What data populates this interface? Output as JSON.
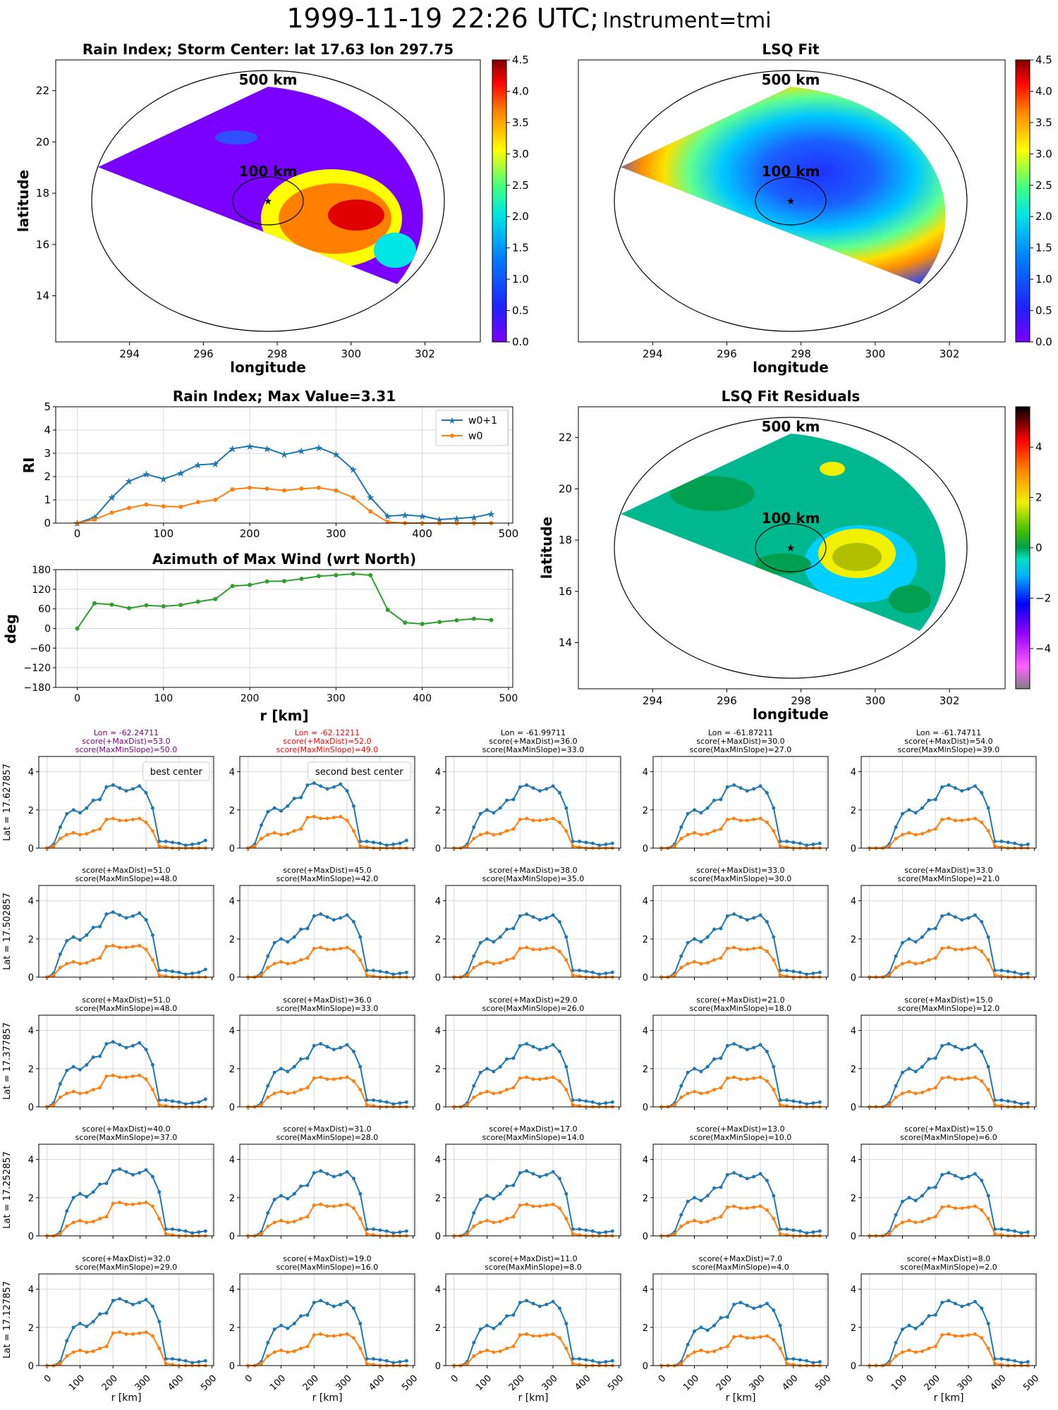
{
  "suptitle_time": "1999-11-19 22:26 UTC;",
  "suptitle_instrument": "Instrument=tmi",
  "colors": {
    "series1": "#1f77b4",
    "series2": "#ff7f0e",
    "azimuth": "#2ca02c",
    "grid": "#d9d9d9",
    "highlight_best": "#800080",
    "highlight_second": "#ff0000"
  },
  "maps": [
    {
      "title": "Rain Index; Storm Center: lat 17.63 lon 297.75",
      "xlabel": "longitude",
      "ylabel": "latitude",
      "label_500": "500 km",
      "label_100": "100 km",
      "xticks": [
        "294",
        "296",
        "298",
        "300",
        "302"
      ],
      "yticks": [
        "14",
        "16",
        "18",
        "20",
        "22"
      ],
      "colorbar_ticks": [
        "0.0",
        "0.5",
        "1.0",
        "1.5",
        "2.0",
        "2.5",
        "3.0",
        "3.5",
        "4.0",
        "4.5"
      ],
      "colormap": "jet"
    },
    {
      "title": "LSQ Fit",
      "xlabel": "longitude",
      "ylabel": "",
      "label_500": "500 km",
      "label_100": "100 km",
      "xticks": [
        "294",
        "296",
        "298",
        "300",
        "302"
      ],
      "yticks": [],
      "colorbar_ticks": [
        "0.0",
        "0.5",
        "1.0",
        "1.5",
        "2.0",
        "2.5",
        "3.0",
        "3.5",
        "4.0",
        "4.5"
      ],
      "colormap": "jet"
    },
    {
      "title": "LSQ Fit Residuals",
      "xlabel": "longitude",
      "ylabel": "latitude",
      "label_500": "500 km",
      "label_100": "100 km",
      "xticks": [
        "294",
        "296",
        "298",
        "300",
        "302"
      ],
      "yticks": [
        "14",
        "16",
        "18",
        "20",
        "22"
      ],
      "colorbar_ticks": [
        "−4",
        "−2",
        "0",
        "2",
        "4"
      ],
      "colormap": "diverging"
    }
  ],
  "chart_data": [
    {
      "type": "line",
      "title": "Rain Index; Max Value=3.31",
      "xlabel": "",
      "ylabel": "RI",
      "xlim": [
        -25,
        505
      ],
      "ylim": [
        0,
        5
      ],
      "xticks": [
        "0",
        "100",
        "200",
        "300",
        "400",
        "500"
      ],
      "yticks": [
        "0",
        "1",
        "2",
        "3",
        "4",
        "5"
      ],
      "legend": "top-right",
      "grid": true,
      "x": [
        0,
        20,
        40,
        60,
        80,
        100,
        120,
        140,
        160,
        180,
        200,
        220,
        240,
        260,
        280,
        300,
        320,
        340,
        360,
        380,
        400,
        420,
        440,
        460,
        480
      ],
      "series": [
        {
          "name": "w0+1",
          "marker": "star",
          "values": [
            0.0,
            0.25,
            1.1,
            1.8,
            2.1,
            1.9,
            2.15,
            2.5,
            2.55,
            3.2,
            3.31,
            3.2,
            2.95,
            3.1,
            3.25,
            2.95,
            2.3,
            1.1,
            0.3,
            0.35,
            0.3,
            0.15,
            0.2,
            0.25,
            0.4
          ]
        },
        {
          "name": "w0",
          "marker": "dot",
          "values": [
            0.0,
            0.15,
            0.45,
            0.65,
            0.8,
            0.72,
            0.7,
            0.9,
            1.0,
            1.45,
            1.52,
            1.48,
            1.4,
            1.48,
            1.52,
            1.4,
            1.1,
            0.5,
            0.05,
            0.0,
            0.0,
            0.0,
            0.0,
            0.0,
            0.0
          ]
        }
      ]
    },
    {
      "type": "line",
      "title": "Azimuth of Max Wind (wrt North)",
      "xlabel": "r [km]",
      "ylabel": "deg",
      "xlim": [
        -25,
        505
      ],
      "ylim": [
        -180,
        180
      ],
      "xticks": [
        "0",
        "100",
        "200",
        "300",
        "400",
        "500"
      ],
      "yticks": [
        "180",
        "120",
        "60",
        "0",
        "−60",
        "−120",
        "−180"
      ],
      "grid": true,
      "x": [
        0,
        20,
        40,
        60,
        80,
        100,
        120,
        140,
        160,
        180,
        200,
        220,
        240,
        260,
        280,
        300,
        320,
        340,
        360,
        380,
        400,
        420,
        440,
        460,
        480
      ],
      "series": [
        {
          "name": "",
          "values": [
            0,
            77,
            73,
            62,
            71,
            68,
            72,
            82,
            90,
            130,
            133,
            144,
            145,
            152,
            160,
            163,
            167,
            163,
            57,
            18,
            14,
            20,
            25,
            30,
            26
          ]
        }
      ]
    },
    {
      "type": "line-grid",
      "x": [
        0,
        20,
        40,
        60,
        80,
        100,
        120,
        140,
        160,
        180,
        200,
        220,
        240,
        260,
        280,
        300,
        320,
        340,
        360,
        380,
        400,
        420,
        440,
        460,
        480
      ],
      "xlim": [
        -25,
        505
      ],
      "ylim": [
        0,
        4.8
      ],
      "xticks": [
        "0",
        "100",
        "200",
        "300",
        "400",
        "500"
      ],
      "yticks": [
        "0",
        "2",
        "4"
      ],
      "xlabel": "r [km]",
      "rows": [
        {
          "label": "Lat = 17.627857"
        },
        {
          "label": "Lat = 17.502857"
        },
        {
          "label": "Lat = 17.377857"
        },
        {
          "label": "Lat = 17.252857"
        },
        {
          "label": "Lat = 17.127857"
        }
      ],
      "panels": [
        {
          "title": [
            "Lon = -62.24711",
            "score(+MaxDist)=53.0",
            "score(MaxMinSlope)=50.0"
          ],
          "highlight": "best",
          "legend_text": "best center",
          "shift": 0,
          "bump": 0
        },
        {
          "title": [
            "Lon = -62.12211",
            "score(+MaxDist)=52.0",
            "score(MaxMinSlope)=49.0"
          ],
          "highlight": "second",
          "legend_text": "second best center",
          "shift": 0,
          "bump": 0.1
        },
        {
          "title": [
            "Lon = -61.99711",
            "score(+MaxDist)=36.0",
            "score(MaxMinSlope)=33.0"
          ],
          "highlight": "",
          "legend_text": "",
          "shift": 1,
          "bump": 0
        },
        {
          "title": [
            "Lon = -61.87211",
            "score(+MaxDist)=30.0",
            "score(MaxMinSlope)=27.0"
          ],
          "highlight": "",
          "legend_text": "",
          "shift": 1,
          "bump": 0
        },
        {
          "title": [
            "Lon = -61.74711",
            "score(+MaxDist)=54.0",
            "score(MaxMinSlope)=39.0"
          ],
          "highlight": "",
          "legend_text": "",
          "shift": 2,
          "bump": 0
        },
        {
          "title": [
            "score(+MaxDist)=51.0",
            "score(MaxMinSlope)=48.0"
          ],
          "highlight": "",
          "legend_text": "",
          "shift": 0,
          "bump": 0.1
        },
        {
          "title": [
            "score(+MaxDist)=45.0",
            "score(MaxMinSlope)=42.0"
          ],
          "highlight": "",
          "legend_text": "",
          "shift": 1,
          "bump": 0
        },
        {
          "title": [
            "score(+MaxDist)=38.0",
            "score(MaxMinSlope)=35.0"
          ],
          "highlight": "",
          "legend_text": "",
          "shift": 1,
          "bump": 0
        },
        {
          "title": [
            "score(+MaxDist)=33.0",
            "score(MaxMinSlope)=30.0"
          ],
          "highlight": "",
          "legend_text": "",
          "shift": 1,
          "bump": 0
        },
        {
          "title": [
            "score(+MaxDist)=33.0",
            "score(MaxMinSlope)=21.0"
          ],
          "highlight": "",
          "legend_text": "",
          "shift": 2,
          "bump": 0
        },
        {
          "title": [
            "score(+MaxDist)=51.0",
            "score(MaxMinSlope)=48.0"
          ],
          "highlight": "",
          "legend_text": "",
          "shift": 0,
          "bump": 0.1
        },
        {
          "title": [
            "score(+MaxDist)=36.0",
            "score(MaxMinSlope)=33.0"
          ],
          "highlight": "",
          "legend_text": "",
          "shift": 1,
          "bump": 0
        },
        {
          "title": [
            "score(+MaxDist)=29.0",
            "score(MaxMinSlope)=26.0"
          ],
          "highlight": "",
          "legend_text": "",
          "shift": 1,
          "bump": 0
        },
        {
          "title": [
            "score(+MaxDist)=21.0",
            "score(MaxMinSlope)=18.0"
          ],
          "highlight": "",
          "legend_text": "",
          "shift": 1,
          "bump": 0
        },
        {
          "title": [
            "score(+MaxDist)=15.0",
            "score(MaxMinSlope)=12.0"
          ],
          "highlight": "",
          "legend_text": "",
          "shift": 2,
          "bump": 0
        },
        {
          "title": [
            "score(+MaxDist)=40.0",
            "score(MaxMinSlope)=37.0"
          ],
          "highlight": "",
          "legend_text": "",
          "shift": 1,
          "bump": 0.2
        },
        {
          "title": [
            "score(+MaxDist)=31.0",
            "score(MaxMinSlope)=28.0"
          ],
          "highlight": "",
          "legend_text": "",
          "shift": 1,
          "bump": 0.1
        },
        {
          "title": [
            "score(+MaxDist)=17.0",
            "score(MaxMinSlope)=14.0"
          ],
          "highlight": "",
          "legend_text": "",
          "shift": 1,
          "bump": 0.1
        },
        {
          "title": [
            "score(+MaxDist)=13.0",
            "score(MaxMinSlope)=10.0"
          ],
          "highlight": "",
          "legend_text": "",
          "shift": 1,
          "bump": 0
        },
        {
          "title": [
            "score(+MaxDist)=15.0",
            "score(MaxMinSlope)=6.0"
          ],
          "highlight": "",
          "legend_text": "",
          "shift": 2,
          "bump": 0
        },
        {
          "title": [
            "score(+MaxDist)=32.0",
            "score(MaxMinSlope)=29.0"
          ],
          "highlight": "",
          "legend_text": "",
          "shift": 1,
          "bump": 0.2
        },
        {
          "title": [
            "score(+MaxDist)=19.0",
            "score(MaxMinSlope)=16.0"
          ],
          "highlight": "",
          "legend_text": "",
          "shift": 1,
          "bump": 0.1
        },
        {
          "title": [
            "score(+MaxDist)=11.0",
            "score(MaxMinSlope)=8.0"
          ],
          "highlight": "",
          "legend_text": "",
          "shift": 1,
          "bump": 0.1
        },
        {
          "title": [
            "score(+MaxDist)=7.0",
            "score(MaxMinSlope)=4.0"
          ],
          "highlight": "",
          "legend_text": "",
          "shift": 2,
          "bump": 0
        },
        {
          "title": [
            "score(+MaxDist)=8.0",
            "score(MaxMinSlope)=2.0"
          ],
          "highlight": "",
          "legend_text": "",
          "shift": 2,
          "bump": 0.1
        }
      ],
      "base_series": [
        {
          "name": "w0+1",
          "values": [
            0.0,
            0.2,
            1.1,
            1.8,
            2.0,
            1.85,
            2.1,
            2.5,
            2.55,
            3.2,
            3.3,
            3.15,
            3.0,
            3.1,
            3.25,
            2.9,
            2.1,
            0.35,
            0.35,
            0.3,
            0.25,
            0.15,
            0.2,
            0.25,
            0.4
          ]
        },
        {
          "name": "w0",
          "values": [
            0.0,
            0.1,
            0.5,
            0.7,
            0.8,
            0.7,
            0.75,
            0.9,
            1.0,
            1.5,
            1.55,
            1.45,
            1.45,
            1.5,
            1.55,
            1.35,
            0.9,
            0.1,
            0.05,
            0.0,
            0.0,
            0.0,
            0.0,
            0.0,
            0.0
          ]
        }
      ]
    }
  ]
}
